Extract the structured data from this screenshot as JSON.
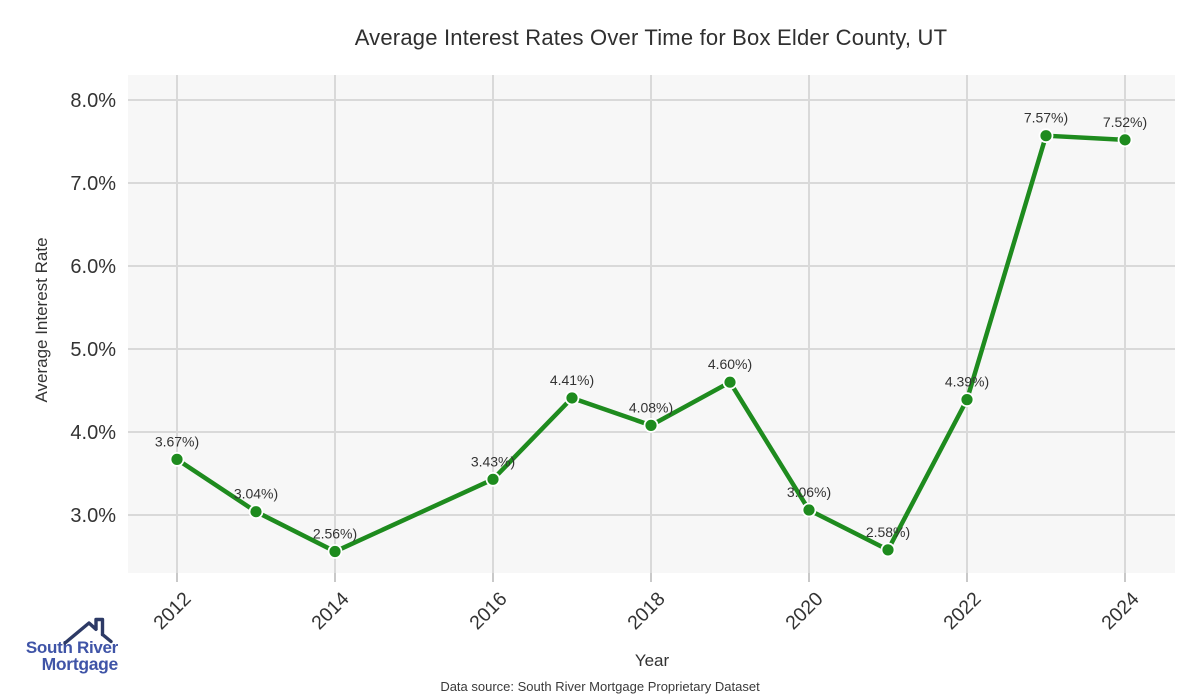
{
  "page": {
    "footer_source": "Data source: South River Mortgage Proprietary Dataset"
  },
  "logo": {
    "name": "South River Mortgage",
    "line1": "South River",
    "line2": "Mortgage",
    "text_color": "#3f54a7",
    "roof_color": "#2d3a66"
  },
  "chart_data": {
    "type": "line",
    "title": "Average Interest Rates Over Time for Box Elder County, UT",
    "xlabel": "Year",
    "ylabel": "Average Interest Rate",
    "grid": true,
    "legend_position": "none",
    "plot_bg": "#f7f7f7",
    "grid_color": "#d9d9d9",
    "tick_color": "#c9c9c9",
    "line_color": "#1e8b1e",
    "marker_edge_color": "#ffffff",
    "label_color": "#333333",
    "xlim": [
      2011.4,
      2024.6
    ],
    "ylim": [
      2.3,
      8.3
    ],
    "x_ticks": [
      "2012",
      "2014",
      "2016",
      "2018",
      "2020",
      "2022",
      "2024"
    ],
    "y_ticks": [
      {
        "label": "8.0%",
        "value": 8.0
      },
      {
        "label": "7.0%",
        "value": 7.0
      },
      {
        "label": "6.0%",
        "value": 6.0
      },
      {
        "label": "5.0%",
        "value": 5.0
      },
      {
        "label": "4.0%",
        "value": 4.0
      },
      {
        "label": "3.0%",
        "value": 3.0
      }
    ],
    "series": [
      {
        "name": "Average Interest Rate",
        "x": [
          2012,
          2013,
          2014,
          2016,
          2017,
          2018,
          2019,
          2020,
          2021,
          2022,
          2023,
          2024
        ],
        "values": [
          3.67,
          3.04,
          2.56,
          3.43,
          4.41,
          4.08,
          4.6,
          3.06,
          2.58,
          4.39,
          7.57,
          7.52
        ],
        "point_labels": [
          "3.67%)",
          "3.04%)",
          "2.56%)",
          "3.43%)",
          "4.41%)",
          "4.08%)",
          "4.60%)",
          "3.06%)",
          "2.58%)",
          "4.39%)",
          "7.57%)",
          "7.52%)"
        ]
      }
    ]
  }
}
